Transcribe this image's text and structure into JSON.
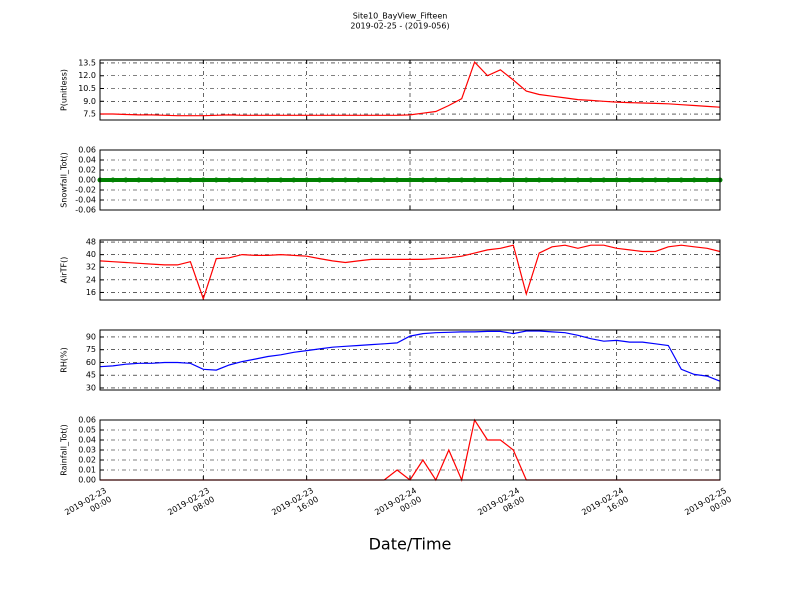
{
  "chart_data": [
    {
      "type": "line",
      "title": "Site10_BayView_Fifteen",
      "subtitle": "2019-02-25 - (2019-056)",
      "ylabel": "P(unitless)",
      "color": "#ff0000",
      "x": [
        "2019-02-23 00:00",
        "2019-02-23 01:00",
        "2019-02-23 02:00",
        "2019-02-23 03:00",
        "2019-02-23 04:00",
        "2019-02-23 05:00",
        "2019-02-23 06:00",
        "2019-02-23 07:00",
        "2019-02-23 08:00",
        "2019-02-23 09:00",
        "2019-02-23 10:00",
        "2019-02-23 11:00",
        "2019-02-23 12:00",
        "2019-02-23 13:00",
        "2019-02-23 14:00",
        "2019-02-23 15:00",
        "2019-02-23 16:00",
        "2019-02-23 17:00",
        "2019-02-23 18:00",
        "2019-02-23 19:00",
        "2019-02-23 20:00",
        "2019-02-23 21:00",
        "2019-02-23 22:00",
        "2019-02-23 23:00",
        "2019-02-24 00:00",
        "2019-02-24 01:00",
        "2019-02-24 02:00",
        "2019-02-24 03:00",
        "2019-02-24 04:00",
        "2019-02-24 05:00",
        "2019-02-24 06:00",
        "2019-02-24 07:00",
        "2019-02-24 08:00",
        "2019-02-24 09:00",
        "2019-02-24 10:00",
        "2019-02-24 11:00",
        "2019-02-24 12:00",
        "2019-02-24 13:00",
        "2019-02-24 14:00",
        "2019-02-24 15:00",
        "2019-02-24 16:00",
        "2019-02-24 17:00",
        "2019-02-24 18:00",
        "2019-02-24 19:00",
        "2019-02-24 20:00",
        "2019-02-24 21:00",
        "2019-02-24 22:00",
        "2019-02-24 23:00",
        "2019-02-25 00:00"
      ],
      "values": [
        7.5,
        7.5,
        7.45,
        7.4,
        7.4,
        7.35,
        7.3,
        7.3,
        7.3,
        7.35,
        7.4,
        7.35,
        7.35,
        7.35,
        7.35,
        7.35,
        7.35,
        7.35,
        7.35,
        7.35,
        7.35,
        7.35,
        7.35,
        7.35,
        7.4,
        7.6,
        7.8,
        8.5,
        9.3,
        13.6,
        12.0,
        12.7,
        11.5,
        10.2,
        9.8,
        9.6,
        9.4,
        9.2,
        9.1,
        9.0,
        8.9,
        8.85,
        8.8,
        8.75,
        8.7,
        8.6,
        8.5,
        8.4,
        8.3
      ],
      "xlim": [
        "2019-02-23 00:00",
        "2019-02-25 00:00"
      ],
      "xticks": [
        "2019-02-23 00:00",
        "2019-02-23 08:00",
        "2019-02-23 16:00",
        "2019-02-24 00:00",
        "2019-02-24 08:00",
        "2019-02-24 16:00",
        "2019-02-25 00:00"
      ],
      "ylim": [
        6.8,
        13.85
      ],
      "yticks": [
        7.5,
        {
          "value": 9.0,
          "label": "9.0"
        },
        10.5,
        {
          "value": 12.0,
          "label": "12.0"
        },
        13.5
      ],
      "grid": true
    },
    {
      "type": "scatter",
      "ylabel": "Snowfall_Tot()",
      "color": "#008000",
      "x": [
        "2019-02-23 00:00",
        "2019-02-23 01:00",
        "2019-02-23 02:00",
        "2019-02-23 03:00",
        "2019-02-23 04:00",
        "2019-02-23 05:00",
        "2019-02-23 06:00",
        "2019-02-23 07:00",
        "2019-02-23 08:00",
        "2019-02-23 09:00",
        "2019-02-23 10:00",
        "2019-02-23 11:00",
        "2019-02-23 12:00",
        "2019-02-23 13:00",
        "2019-02-23 14:00",
        "2019-02-23 15:00",
        "2019-02-23 16:00",
        "2019-02-23 17:00",
        "2019-02-23 18:00",
        "2019-02-23 19:00",
        "2019-02-23 20:00",
        "2019-02-23 21:00",
        "2019-02-23 22:00",
        "2019-02-23 23:00",
        "2019-02-24 00:00",
        "2019-02-24 01:00",
        "2019-02-24 02:00",
        "2019-02-24 03:00",
        "2019-02-24 04:00",
        "2019-02-24 05:00",
        "2019-02-24 06:00",
        "2019-02-24 07:00",
        "2019-02-24 08:00",
        "2019-02-24 09:00",
        "2019-02-24 10:00",
        "2019-02-24 11:00",
        "2019-02-24 12:00",
        "2019-02-24 13:00",
        "2019-02-24 14:00",
        "2019-02-24 15:00",
        "2019-02-24 16:00",
        "2019-02-24 17:00",
        "2019-02-24 18:00",
        "2019-02-24 19:00",
        "2019-02-24 20:00",
        "2019-02-24 21:00",
        "2019-02-24 22:00",
        "2019-02-24 23:00",
        "2019-02-25 00:00"
      ],
      "values": [
        0,
        0,
        0,
        0,
        0,
        0,
        0,
        0,
        0,
        0,
        0,
        0,
        0,
        0,
        0,
        0,
        0,
        0,
        0,
        0,
        0,
        0,
        0,
        0,
        0,
        0,
        0,
        0,
        0,
        0,
        0,
        0,
        0,
        0,
        0,
        0,
        0,
        0,
        0,
        0,
        0,
        0,
        0,
        0,
        0,
        0,
        0,
        0,
        0
      ],
      "xlim": [
        "2019-02-23 00:00",
        "2019-02-25 00:00"
      ],
      "xticks": [
        "2019-02-23 00:00",
        "2019-02-23 08:00",
        "2019-02-23 16:00",
        "2019-02-24 00:00",
        "2019-02-24 08:00",
        "2019-02-24 16:00",
        "2019-02-25 00:00"
      ],
      "ylim": [
        -0.06,
        0.06
      ],
      "yticks": [
        -0.06,
        -0.04,
        -0.02,
        {
          "value": 0,
          "label": "0.00"
        },
        0.02,
        0.04,
        0.06
      ],
      "grid": true
    },
    {
      "type": "line",
      "ylabel": "AirTF()",
      "color": "#ff0000",
      "x": [
        "2019-02-23 00:00",
        "2019-02-23 01:00",
        "2019-02-23 02:00",
        "2019-02-23 03:00",
        "2019-02-23 04:00",
        "2019-02-23 05:00",
        "2019-02-23 06:00",
        "2019-02-23 07:00",
        "2019-02-23 08:00",
        "2019-02-23 09:00",
        "2019-02-23 10:00",
        "2019-02-23 11:00",
        "2019-02-23 12:00",
        "2019-02-23 13:00",
        "2019-02-23 14:00",
        "2019-02-23 15:00",
        "2019-02-23 16:00",
        "2019-02-23 17:00",
        "2019-02-23 18:00",
        "2019-02-23 19:00",
        "2019-02-23 20:00",
        "2019-02-23 21:00",
        "2019-02-23 22:00",
        "2019-02-23 23:00",
        "2019-02-24 00:00",
        "2019-02-24 01:00",
        "2019-02-24 02:00",
        "2019-02-24 03:00",
        "2019-02-24 04:00",
        "2019-02-24 05:00",
        "2019-02-24 06:00",
        "2019-02-24 07:00",
        "2019-02-24 08:00",
        "2019-02-24 09:00",
        "2019-02-24 10:00",
        "2019-02-24 11:00",
        "2019-02-24 12:00",
        "2019-02-24 13:00",
        "2019-02-24 14:00",
        "2019-02-24 15:00",
        "2019-02-24 16:00",
        "2019-02-24 17:00",
        "2019-02-24 18:00",
        "2019-02-24 19:00",
        "2019-02-24 20:00",
        "2019-02-24 21:00",
        "2019-02-24 22:00",
        "2019-02-24 23:00",
        "2019-02-25 00:00"
      ],
      "values": [
        36,
        35.5,
        35,
        34.5,
        34,
        33.5,
        33.5,
        35.5,
        12,
        37.5,
        38,
        40,
        39.5,
        39.5,
        40,
        39.5,
        39,
        37.5,
        36,
        35,
        36,
        37,
        37,
        37,
        37,
        37,
        37.5,
        38,
        39,
        41,
        43,
        44,
        46,
        15,
        41,
        45,
        46,
        44,
        46,
        46,
        44,
        43,
        42,
        42,
        45,
        46,
        45,
        44,
        42
      ],
      "xlim": [
        "2019-02-23 00:00",
        "2019-02-25 00:00"
      ],
      "xticks": [
        "2019-02-23 00:00",
        "2019-02-23 08:00",
        "2019-02-23 16:00",
        "2019-02-24 00:00",
        "2019-02-24 08:00",
        "2019-02-24 16:00",
        "2019-02-25 00:00"
      ],
      "ylim": [
        11.2,
        49.3
      ],
      "yticks": [
        16,
        24,
        32,
        40,
        48
      ],
      "grid": true
    },
    {
      "type": "line",
      "ylabel": "RH(%)",
      "color": "#0000ff",
      "x": [
        "2019-02-23 00:00",
        "2019-02-23 01:00",
        "2019-02-23 02:00",
        "2019-02-23 03:00",
        "2019-02-23 04:00",
        "2019-02-23 05:00",
        "2019-02-23 06:00",
        "2019-02-23 07:00",
        "2019-02-23 08:00",
        "2019-02-23 09:00",
        "2019-02-23 10:00",
        "2019-02-23 11:00",
        "2019-02-23 12:00",
        "2019-02-23 13:00",
        "2019-02-23 14:00",
        "2019-02-23 15:00",
        "2019-02-23 16:00",
        "2019-02-23 17:00",
        "2019-02-23 18:00",
        "2019-02-23 19:00",
        "2019-02-23 20:00",
        "2019-02-23 21:00",
        "2019-02-23 22:00",
        "2019-02-23 23:00",
        "2019-02-24 00:00",
        "2019-02-24 01:00",
        "2019-02-24 02:00",
        "2019-02-24 03:00",
        "2019-02-24 04:00",
        "2019-02-24 05:00",
        "2019-02-24 06:00",
        "2019-02-24 07:00",
        "2019-02-24 08:00",
        "2019-02-24 09:00",
        "2019-02-24 10:00",
        "2019-02-24 11:00",
        "2019-02-24 12:00",
        "2019-02-24 13:00",
        "2019-02-24 14:00",
        "2019-02-24 15:00",
        "2019-02-24 16:00",
        "2019-02-24 17:00",
        "2019-02-24 18:00",
        "2019-02-24 19:00",
        "2019-02-24 20:00",
        "2019-02-24 21:00",
        "2019-02-24 22:00",
        "2019-02-24 23:00",
        "2019-02-25 00:00"
      ],
      "values": [
        55,
        56,
        58,
        59,
        59,
        60,
        60,
        59,
        52,
        51,
        57,
        61,
        64,
        67,
        69,
        72,
        74,
        76,
        78,
        79,
        80,
        81,
        82,
        83,
        91,
        94,
        95,
        95.5,
        96,
        96,
        96.5,
        96.5,
        94,
        97,
        97,
        96,
        95,
        92,
        88,
        85,
        86,
        84,
        84,
        82,
        80,
        52,
        46,
        44,
        38
      ],
      "xlim": [
        "2019-02-23 00:00",
        "2019-02-25 00:00"
      ],
      "xticks": [
        "2019-02-23 00:00",
        "2019-02-23 08:00",
        "2019-02-23 16:00",
        "2019-02-24 00:00",
        "2019-02-24 08:00",
        "2019-02-24 16:00",
        "2019-02-25 00:00"
      ],
      "ylim": [
        27.6,
        98.2
      ],
      "yticks": [
        30,
        45,
        60,
        75,
        90
      ],
      "grid": true
    },
    {
      "type": "line",
      "ylabel": "Rainfall_Tot()",
      "xlabel": "Date/Time",
      "color": "#ff0000",
      "x": [
        "2019-02-23 00:00",
        "2019-02-23 01:00",
        "2019-02-23 02:00",
        "2019-02-23 03:00",
        "2019-02-23 04:00",
        "2019-02-23 05:00",
        "2019-02-23 06:00",
        "2019-02-23 07:00",
        "2019-02-23 08:00",
        "2019-02-23 09:00",
        "2019-02-23 10:00",
        "2019-02-23 11:00",
        "2019-02-23 12:00",
        "2019-02-23 13:00",
        "2019-02-23 14:00",
        "2019-02-23 15:00",
        "2019-02-23 16:00",
        "2019-02-23 17:00",
        "2019-02-23 18:00",
        "2019-02-23 19:00",
        "2019-02-23 20:00",
        "2019-02-23 21:00",
        "2019-02-23 22:00",
        "2019-02-23 23:00",
        "2019-02-24 00:00",
        "2019-02-24 01:00",
        "2019-02-24 02:00",
        "2019-02-24 03:00",
        "2019-02-24 04:00",
        "2019-02-24 05:00",
        "2019-02-24 06:00",
        "2019-02-24 07:00",
        "2019-02-24 08:00",
        "2019-02-24 09:00",
        "2019-02-24 10:00",
        "2019-02-24 11:00",
        "2019-02-24 12:00",
        "2019-02-24 13:00",
        "2019-02-24 14:00",
        "2019-02-24 15:00",
        "2019-02-24 16:00",
        "2019-02-24 17:00",
        "2019-02-24 18:00",
        "2019-02-24 19:00",
        "2019-02-24 20:00",
        "2019-02-24 21:00",
        "2019-02-24 22:00",
        "2019-02-24 23:00",
        "2019-02-25 00:00"
      ],
      "values": [
        0,
        0,
        0,
        0,
        0,
        0,
        0,
        0,
        0,
        0,
        0,
        0,
        0,
        0,
        0,
        0,
        0,
        0,
        0,
        0,
        0,
        0,
        0,
        0.01,
        0,
        0.02,
        0,
        0.03,
        0,
        0.06,
        0.04,
        0.04,
        0.03,
        0,
        0,
        0,
        0,
        0,
        0,
        0,
        0,
        0,
        0,
        0,
        0,
        0,
        0,
        0,
        0
      ],
      "xlim": [
        "2019-02-23 00:00",
        "2019-02-25 00:00"
      ],
      "xticks": [
        {
          "value": "2019-02-23 00:00",
          "label": "2019-02-23\n00:00"
        },
        {
          "value": "2019-02-23 08:00",
          "label": "2019-02-23\n08:00"
        },
        {
          "value": "2019-02-23 16:00",
          "label": "2019-02-23\n16:00"
        },
        {
          "value": "2019-02-24 00:00",
          "label": "2019-02-24\n00:00"
        },
        {
          "value": "2019-02-24 08:00",
          "label": "2019-02-24\n08:00"
        },
        {
          "value": "2019-02-24 16:00",
          "label": "2019-02-24\n16:00"
        },
        {
          "value": "2019-02-25 00:00",
          "label": "2019-02-25\n00:00"
        }
      ],
      "ylim": [
        0,
        0.06
      ],
      "yticks": [
        {
          "value": 0,
          "label": "0.00"
        },
        0.01,
        0.02,
        0.03,
        0.04,
        0.05,
        0.06
      ],
      "grid": true
    }
  ]
}
